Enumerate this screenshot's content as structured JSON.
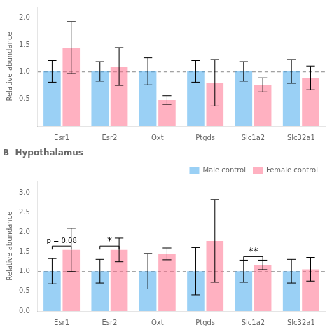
{
  "chart_data": [
    {
      "type": "bar",
      "categories": [
        "Esr1",
        "Esr2",
        "Oxt",
        "Ptgds",
        "Slc1a2",
        "Slc32a1"
      ],
      "series": [
        {
          "name": "Male control",
          "values": [
            1.01,
            1.01,
            1.01,
            1.01,
            1.01,
            1.01
          ],
          "errors": [
            0.2,
            0.18,
            0.25,
            0.2,
            0.18,
            0.22
          ]
        },
        {
          "name": "Female control",
          "values": [
            1.45,
            1.1,
            0.48,
            0.8,
            0.76,
            0.89
          ],
          "errors": [
            0.48,
            0.35,
            0.08,
            0.43,
            0.13,
            0.22
          ]
        }
      ],
      "ylabel": "Relative abundance",
      "ylim": [
        0.0,
        2.2
      ],
      "yticks": [
        0.5,
        {
          "value": 1.0,
          "label": "1.0"
        },
        1.5,
        {
          "value": 2.0,
          "label": "2.0"
        }
      ],
      "reference_line": 1.0,
      "grid": false,
      "legend": false
    },
    {
      "type": "bar",
      "title": "B  Hypothalamus",
      "categories": [
        "Esr1",
        "Esr2",
        "Oxt",
        "Ptgds",
        "Slc1a2",
        "Slc32a1"
      ],
      "series": [
        {
          "name": "Male control",
          "values": [
            1.01,
            1.01,
            1.01,
            1.01,
            1.01,
            1.01
          ],
          "errors": [
            0.32,
            0.3,
            0.45,
            0.6,
            0.28,
            0.3
          ]
        },
        {
          "name": "Female control",
          "values": [
            1.55,
            1.55,
            1.45,
            1.78,
            1.17,
            1.06
          ],
          "errors": [
            0.55,
            0.3,
            0.15,
            1.05,
            0.12,
            0.3
          ]
        }
      ],
      "ylabel": "Relative abundance",
      "ylim": [
        0.0,
        3.3
      ],
      "yticks": [
        {
          "value": 0.0,
          "label": "0.0"
        },
        0.5,
        {
          "value": 1.0,
          "label": "1.0"
        },
        1.5,
        {
          "value": 2.0,
          "label": "2.0"
        },
        2.5,
        {
          "value": 3.0,
          "label": "3.0"
        }
      ],
      "reference_line": 1.0,
      "grid": false,
      "legend": "upper right",
      "annotations": [
        {
          "text": "p = 0.08",
          "category": "Esr1",
          "y": 1.65
        },
        {
          "text": "*",
          "category": "Esr2",
          "y": 1.65
        },
        {
          "text": "**",
          "category": "Slc1a2",
          "y": 1.38
        }
      ]
    }
  ]
}
